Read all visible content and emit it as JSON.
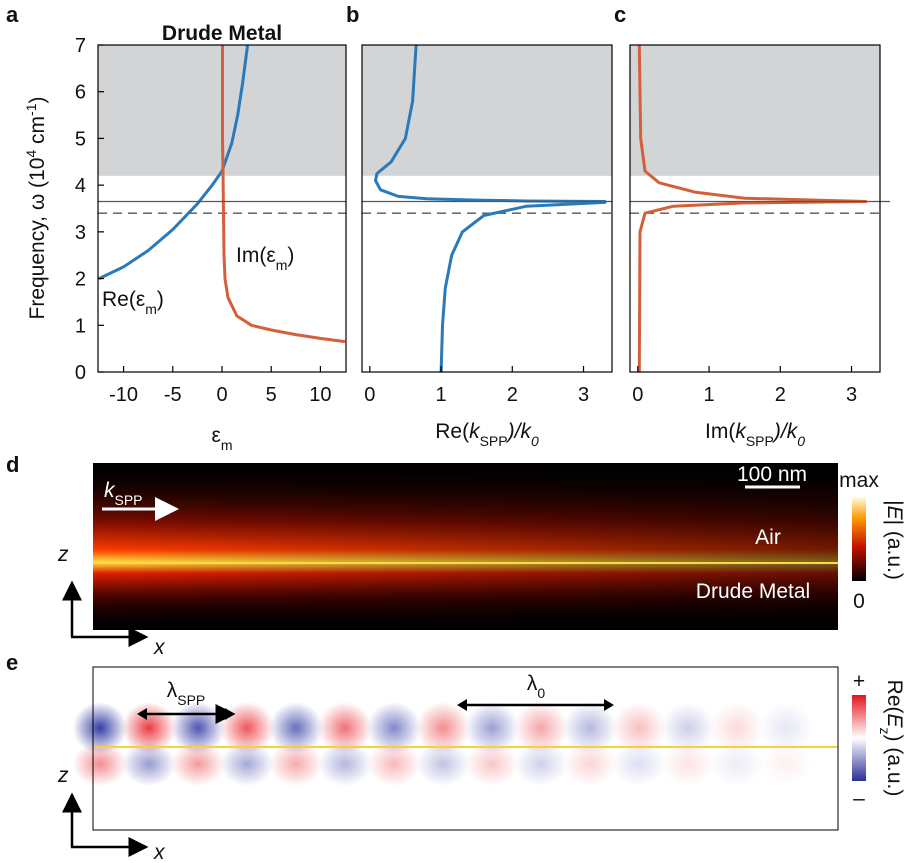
{
  "chart_data": [
    {
      "type": "line",
      "panel": "a",
      "title": "Drude Metal",
      "ylabel": [
        "Frequency, ω (10",
        "4",
        " cm",
        "-1",
        ")"
      ],
      "xlabel": [
        "ε",
        "m"
      ],
      "xlim": [
        -12.6,
        12.6
      ],
      "ylim": [
        0,
        7
      ],
      "xticks": [
        -10,
        -5,
        0,
        5,
        10
      ],
      "yticks": [
        0,
        1,
        2,
        3,
        4,
        5,
        6,
        7
      ],
      "shade": [
        4.2,
        7
      ],
      "shade_color": "#d3d4d6",
      "hlines": [
        {
          "value": 3.65,
          "style": "solid"
        },
        {
          "value": 3.4,
          "style": "dashed"
        }
      ],
      "series": [
        {
          "color": "#2a7ab9",
          "x": [
            -12.5,
            -10,
            -7.5,
            -5,
            -2.5,
            -1,
            0,
            1,
            1.6,
            2.1,
            2.6
          ],
          "values": [
            2.0,
            2.25,
            2.6,
            3.05,
            3.6,
            4.0,
            4.3,
            4.9,
            5.5,
            6.2,
            7.0
          ]
        },
        {
          "color": "#d4603a",
          "x": [
            0.05,
            0.05,
            0.1,
            0.2,
            0.3,
            0.6,
            1.5,
            3,
            5,
            7.5,
            10,
            12.5
          ],
          "values": [
            7.0,
            5.0,
            4.3,
            2.5,
            2.0,
            1.6,
            1.2,
            1.0,
            0.9,
            0.8,
            0.72,
            0.65
          ]
        }
      ],
      "annotations": [
        {
          "parts": [
            "Re(ε",
            "m",
            ")"
          ],
          "color": "#2a7ab9"
        },
        {
          "parts": [
            "Im(ε",
            "m",
            ")"
          ],
          "color": "#d4603a"
        }
      ]
    },
    {
      "type": "line",
      "panel": "b",
      "xlabel": [
        "Re(",
        "k",
        "SPP",
        ")/",
        "k",
        "0"
      ],
      "xlim": [
        -0.11,
        3.4
      ],
      "ylim": [
        0,
        7
      ],
      "xticks": [
        0,
        1,
        2,
        3
      ],
      "shade": [
        4.2,
        7
      ],
      "shade_color": "#d3d4d6",
      "hlines": [
        {
          "value": 3.65,
          "style": "solid"
        },
        {
          "value": 3.4,
          "style": "dashed"
        }
      ],
      "series": [
        {
          "color": "#2a7ab9",
          "x": [
            1.0,
            1.02,
            1.06,
            1.15,
            1.3,
            1.6,
            2.2,
            3.3,
            3.3,
            2.2,
            1.5,
            0.8,
            0.4,
            0.15,
            0.08,
            0.1,
            0.3,
            0.5,
            0.6,
            0.65
          ],
          "values": [
            0,
            1.0,
            1.8,
            2.5,
            3.0,
            3.35,
            3.55,
            3.63,
            3.65,
            3.66,
            3.68,
            3.71,
            3.76,
            3.9,
            4.1,
            4.25,
            4.5,
            5.0,
            5.8,
            7.0
          ]
        }
      ]
    },
    {
      "type": "line",
      "panel": "c",
      "xlabel": [
        "Im(",
        "k",
        "SPP",
        ")/",
        "k",
        "0"
      ],
      "xlim": [
        -0.11,
        3.4
      ],
      "ylim": [
        0,
        7
      ],
      "xticks": [
        0,
        1,
        2,
        3
      ],
      "shade": [
        4.2,
        7
      ],
      "shade_color": "#d3d4d6",
      "hlines": [
        {
          "value": 3.65,
          "style": "solid"
        },
        {
          "value": 3.4,
          "style": "dashed"
        }
      ],
      "series": [
        {
          "color": "#d4603a",
          "x": [
            0.02,
            0.03,
            0.1,
            0.5,
            1.5,
            3.2,
            1.5,
            0.8,
            0.3,
            0.1,
            0.04,
            0.02
          ],
          "values": [
            0,
            3.0,
            3.4,
            3.55,
            3.62,
            3.65,
            3.72,
            3.85,
            4.05,
            4.3,
            5.0,
            7.0
          ]
        }
      ]
    }
  ],
  "field_maps": [
    {
      "panel": "d",
      "wavevector": [
        "k",
        "SPP"
      ],
      "scale_bar": "100 nm",
      "upper_medium": "Air",
      "lower_medium": "Drude Metal",
      "colorbar_max": "max",
      "colorbar_min": "0",
      "colorbar_label": [
        "|",
        "E",
        "| (a.u.)"
      ],
      "z_axis": "z",
      "x_axis": "x"
    },
    {
      "panel": "e",
      "spp_wavelength": [
        "λ",
        "SPP"
      ],
      "free_wavelength": [
        "λ",
        "0"
      ],
      "colorbar_max": "+",
      "colorbar_min": "–",
      "colorbar_label": [
        "Re(",
        "E",
        "z",
        ") (a.u.)"
      ],
      "z_axis": "z",
      "x_axis": "x"
    }
  ]
}
